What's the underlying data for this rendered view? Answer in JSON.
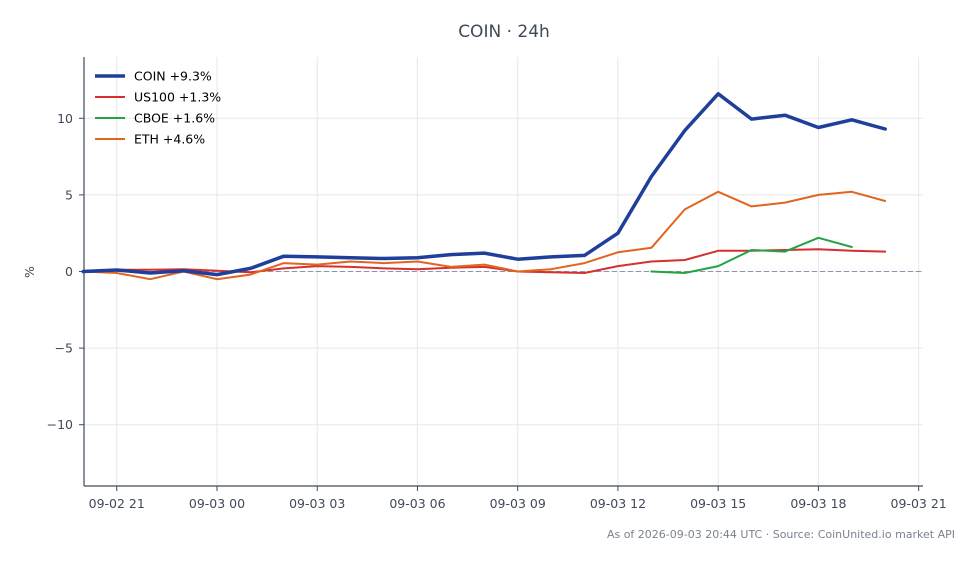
{
  "chart_data": {
    "type": "line",
    "title": "COIN · 24h",
    "ylabel": "%",
    "xlabel": "",
    "xlim": [
      -0.98,
      24.13
    ],
    "ylim": [
      -14,
      14
    ],
    "grid": true,
    "legend_position": "top-left",
    "zero_line": 0,
    "x_ticks": [
      {
        "x": 0,
        "label": "09-02 21"
      },
      {
        "x": 3,
        "label": "09-03 00"
      },
      {
        "x": 6,
        "label": "09-03 03"
      },
      {
        "x": 9,
        "label": "09-03 06"
      },
      {
        "x": 12,
        "label": "09-03 09"
      },
      {
        "x": 15,
        "label": "09-03 12"
      },
      {
        "x": 18,
        "label": "09-03 15"
      },
      {
        "x": 21,
        "label": "09-03 18"
      },
      {
        "x": 24,
        "label": "09-03 21"
      }
    ],
    "y_ticks": [
      {
        "y": 10,
        "label": "10"
      },
      {
        "y": 5,
        "label": "5"
      },
      {
        "y": 0,
        "label": "0"
      },
      {
        "y": -5,
        "label": "−5"
      },
      {
        "y": -10,
        "label": "−10"
      }
    ],
    "series": [
      {
        "name": "COIN +9.3%",
        "color": "#1f3f9a",
        "width": 3.5,
        "x": [
          -1,
          0,
          1,
          2,
          3,
          4,
          5,
          6,
          7,
          8,
          9,
          10,
          11,
          12,
          13,
          14,
          15,
          16,
          17,
          18,
          19,
          20,
          21,
          22,
          23
        ],
        "y": [
          0,
          0.1,
          -0.1,
          0.05,
          -0.2,
          0.2,
          1.0,
          0.95,
          0.9,
          0.85,
          0.9,
          1.1,
          1.2,
          0.8,
          0.95,
          1.05,
          2.5,
          6.2,
          9.2,
          11.6,
          9.95,
          10.2,
          9.4,
          9.9,
          9.3
        ]
      },
      {
        "name": "US100 +1.3%",
        "color": "#d62f2f",
        "width": 2,
        "x": [
          -1,
          0,
          1,
          2,
          3,
          4,
          5,
          6,
          7,
          8,
          9,
          10,
          11,
          12,
          13,
          14,
          15,
          16,
          17,
          18,
          19,
          20,
          21,
          22,
          23
        ],
        "y": [
          0,
          0.12,
          0.12,
          0.15,
          0.05,
          -0.05,
          0.2,
          0.35,
          0.3,
          0.2,
          0.15,
          0.25,
          0.3,
          0.0,
          -0.05,
          -0.1,
          0.35,
          0.65,
          0.75,
          1.35,
          1.35,
          1.4,
          1.45,
          1.35,
          1.3
        ]
      },
      {
        "name": "CBOE +1.6%",
        "color": "#25a244",
        "width": 2,
        "x": [
          16,
          17,
          18,
          19,
          20,
          21,
          22
        ],
        "y": [
          0.0,
          -0.1,
          0.35,
          1.4,
          1.3,
          2.2,
          1.6
        ]
      },
      {
        "name": "ETH +4.6%",
        "color": "#e0651f",
        "width": 2,
        "x": [
          -1,
          0,
          1,
          2,
          3,
          4,
          5,
          6,
          7,
          8,
          9,
          10,
          11,
          12,
          13,
          14,
          15,
          16,
          17,
          18,
          19,
          20,
          21,
          22,
          23
        ],
        "y": [
          0,
          -0.1,
          -0.5,
          0.0,
          -0.5,
          -0.2,
          0.55,
          0.45,
          0.65,
          0.55,
          0.65,
          0.3,
          0.45,
          0.0,
          0.15,
          0.55,
          1.25,
          1.55,
          4.05,
          5.2,
          4.25,
          4.5,
          5.0,
          5.2,
          4.6
        ]
      }
    ],
    "footer": "As of 2026-09-03 20:44 UTC · Source: CoinUnited.io market API"
  }
}
